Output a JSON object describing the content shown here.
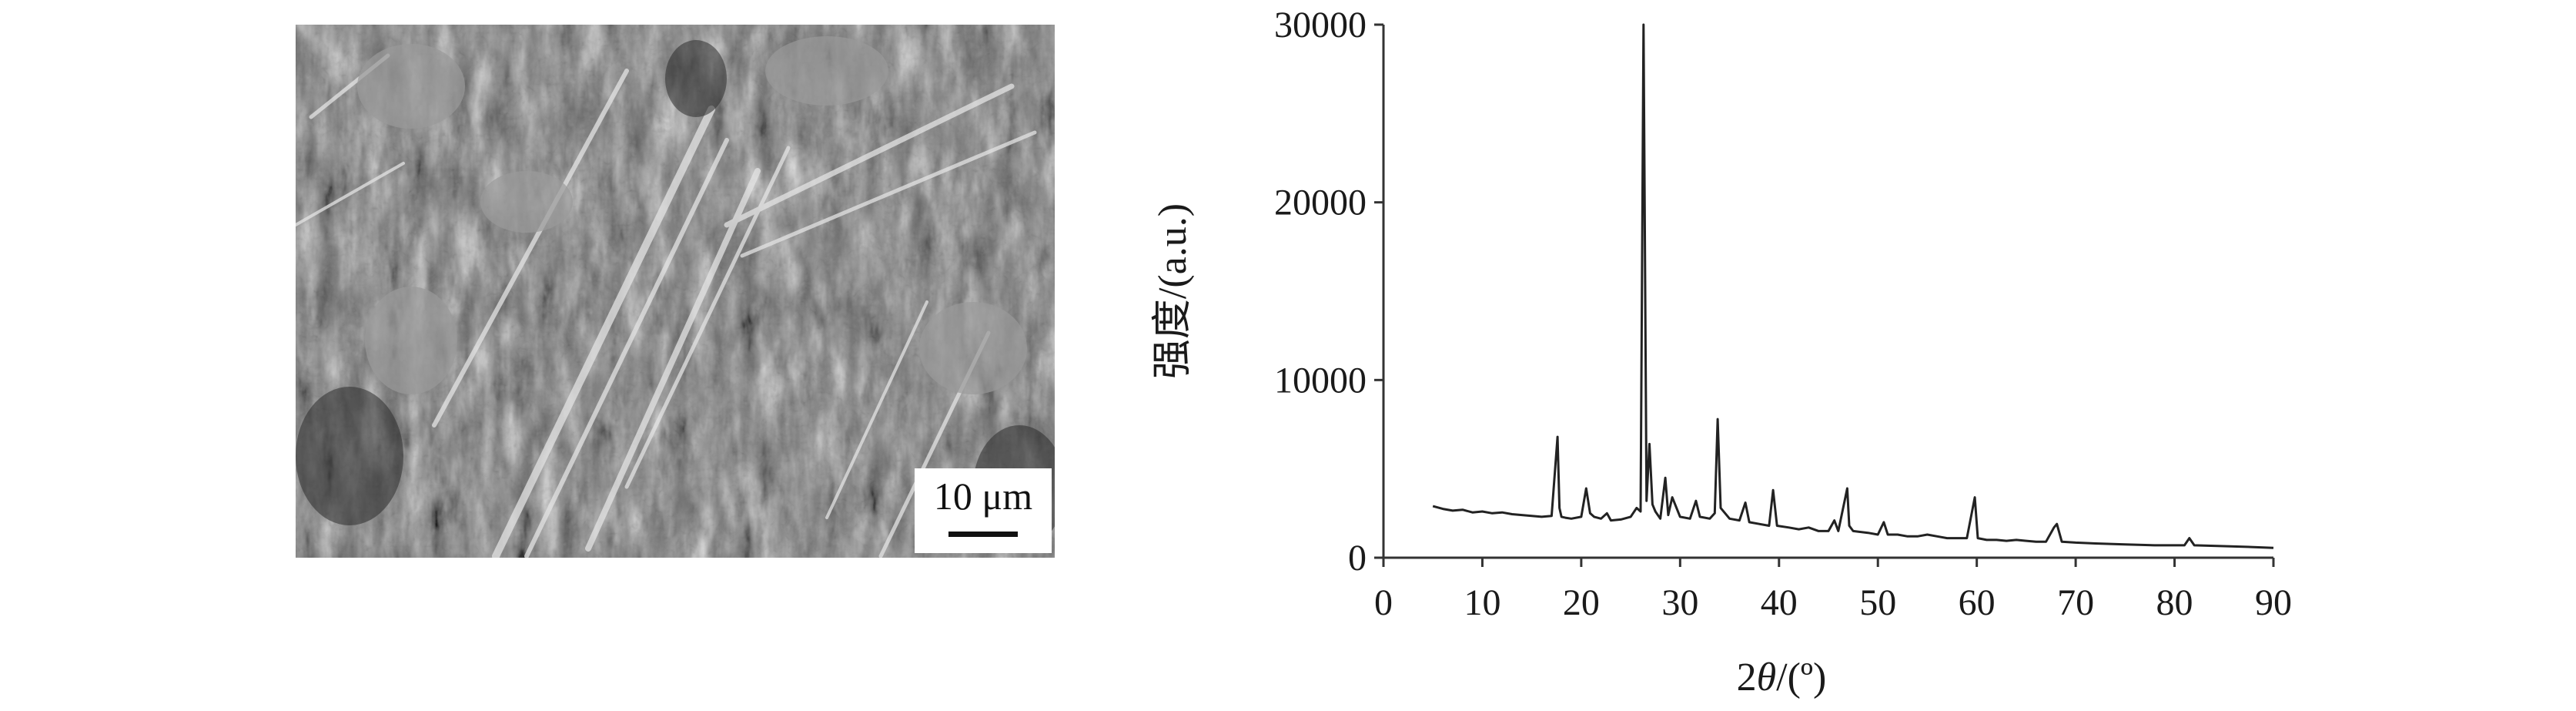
{
  "sem_image": {
    "scale_label": "10 μm",
    "scale_value_um": 10
  },
  "chart_data": {
    "type": "line",
    "title": "",
    "xlabel_prefix": "2",
    "xlabel_symbol": "θ",
    "xlabel_suffix": "/(º)",
    "ylabel": "强度/(a.u.)",
    "xlim": [
      0,
      90
    ],
    "ylim": [
      0,
      30000
    ],
    "xticks": [
      0,
      10,
      20,
      30,
      40,
      50,
      60,
      70,
      80,
      90
    ],
    "yticks": [
      0,
      10000,
      20000,
      30000
    ],
    "grid": false,
    "series": [
      {
        "color": "#222222",
        "x": [
          5,
          6,
          7,
          8,
          9,
          10,
          11,
          12,
          13,
          14,
          15,
          16,
          17,
          17.6,
          17.8,
          18,
          18.4,
          19,
          20,
          20.5,
          20.9,
          21.3,
          22,
          22.6,
          23,
          24,
          25,
          25.6,
          26,
          26.3,
          26.6,
          26.9,
          27.2,
          27.5,
          28,
          28.5,
          28.8,
          29.2,
          30,
          31,
          31.6,
          32,
          33,
          33.5,
          33.8,
          34.1,
          35,
          36,
          36.6,
          37,
          38,
          39,
          39.4,
          39.8,
          41,
          42,
          43,
          44,
          45,
          45.6,
          46,
          46.9,
          47.1,
          47.5,
          49,
          50,
          50.6,
          51,
          52,
          53,
          54,
          55,
          56,
          57,
          58,
          59,
          59.8,
          60.1,
          61,
          62,
          63,
          64,
          65,
          66,
          67,
          67.8,
          68.1,
          68.6,
          70,
          72,
          75,
          78,
          81,
          81.5,
          82,
          85,
          88,
          90
        ],
        "y": [
          2900,
          2750,
          2650,
          2700,
          2550,
          2600,
          2500,
          2550,
          2450,
          2400,
          2350,
          2300,
          2350,
          6800,
          2800,
          2300,
          2250,
          2200,
          2300,
          3900,
          2500,
          2300,
          2200,
          2500,
          2100,
          2150,
          2300,
          2800,
          2600,
          30000,
          3200,
          6400,
          3000,
          2600,
          2200,
          4500,
          2400,
          3400,
          2300,
          2200,
          3200,
          2300,
          2200,
          2500,
          7800,
          2800,
          2200,
          2100,
          3100,
          2000,
          1900,
          1800,
          3800,
          1800,
          1700,
          1600,
          1700,
          1500,
          1500,
          2100,
          1500,
          3900,
          1800,
          1500,
          1400,
          1300,
          2000,
          1300,
          1300,
          1200,
          1200,
          1300,
          1200,
          1100,
          1100,
          1100,
          3400,
          1100,
          1000,
          1000,
          950,
          1000,
          950,
          900,
          900,
          1700,
          1900,
          900,
          850,
          800,
          750,
          700,
          700,
          1100,
          700,
          650,
          600,
          550
        ]
      }
    ]
  }
}
